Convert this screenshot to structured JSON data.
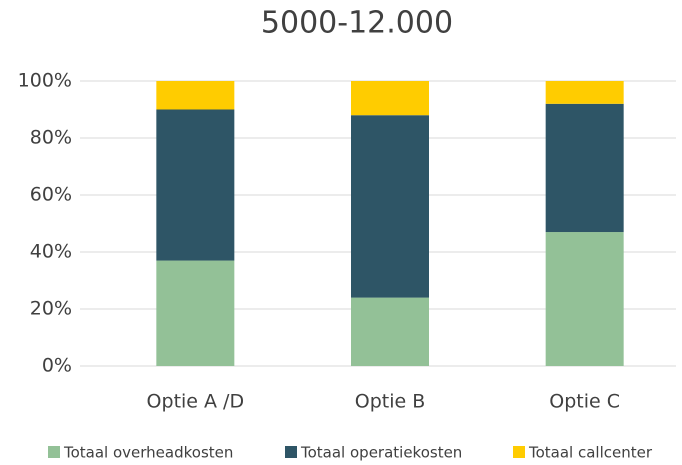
{
  "chart_data": {
    "type": "stacked_bar",
    "title": "5000-12.000",
    "categories": [
      "Optie A /D",
      "Optie B",
      "Optie C"
    ],
    "series": [
      {
        "name": "Totaal overheadkosten",
        "color": "#93c197",
        "values": [
          37,
          24,
          47
        ]
      },
      {
        "name": "Totaal operatiekosten",
        "color": "#2e5566",
        "values": [
          53,
          64,
          45
        ]
      },
      {
        "name": "Totaal callcenter",
        "color": "#ffcc00",
        "values": [
          10,
          12,
          8
        ]
      }
    ],
    "ylim": [
      0,
      100
    ],
    "yticks": [
      {
        "value": 0,
        "label": "0%"
      },
      {
        "value": 20,
        "label": "20%"
      },
      {
        "value": 40,
        "label": "40%"
      },
      {
        "value": 60,
        "label": "60%"
      },
      {
        "value": 80,
        "label": "80%"
      },
      {
        "value": 100,
        "label": "100%"
      }
    ],
    "grid": true,
    "legend": "bottom"
  }
}
